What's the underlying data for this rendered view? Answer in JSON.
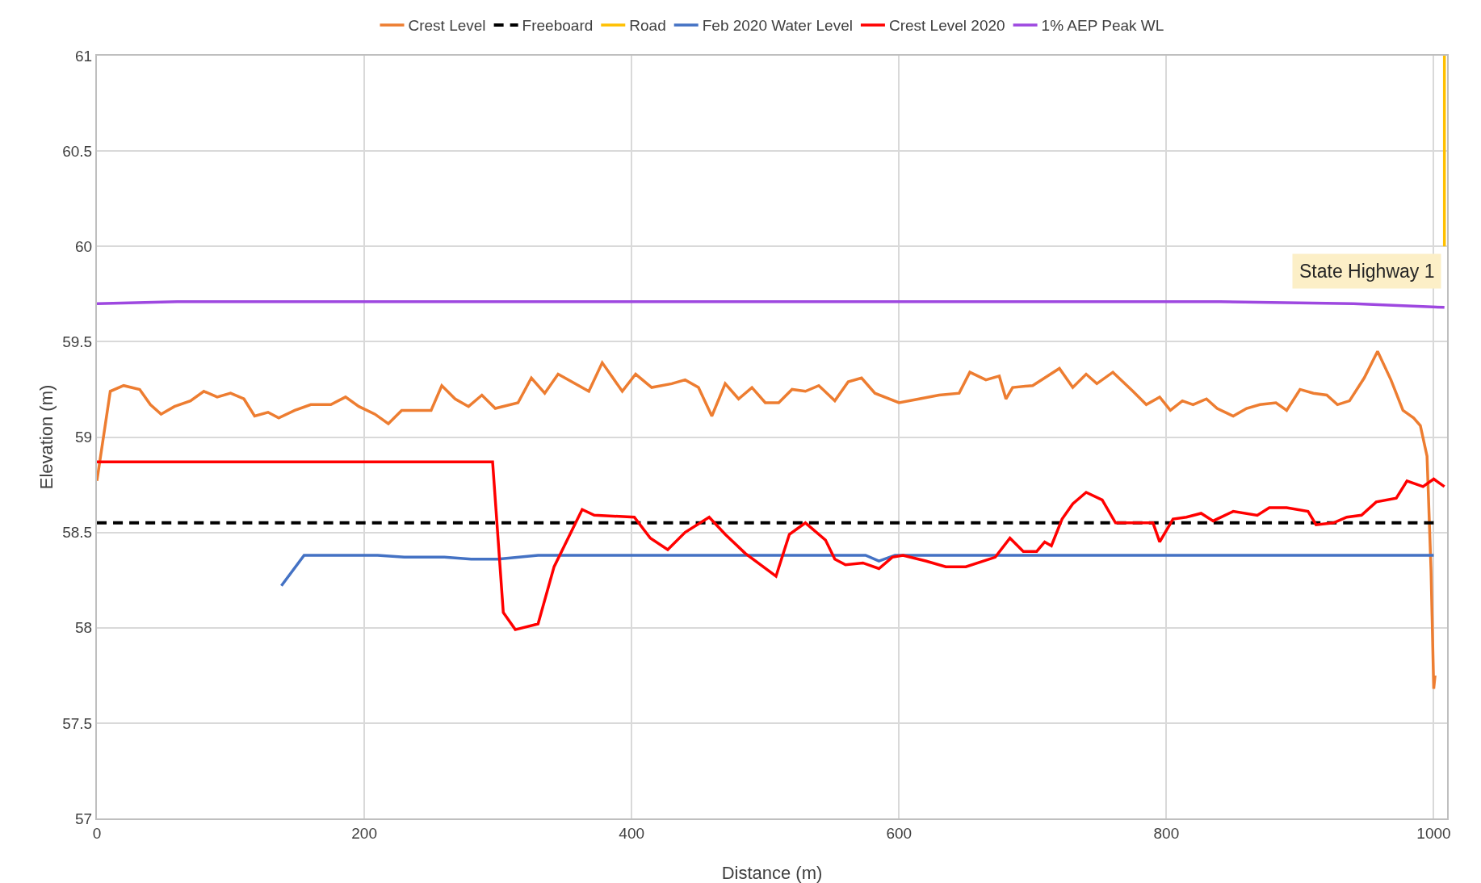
{
  "chart_data": {
    "type": "line",
    "xlabel": "Distance (m)",
    "ylabel": "Elevation (m)",
    "xlim": [
      0,
      1010
    ],
    "xticks": [
      0,
      200,
      400,
      600,
      800,
      1000
    ],
    "ylim": [
      57,
      61
    ],
    "yticks": [
      57,
      57.5,
      58,
      58.5,
      59,
      59.5,
      60,
      60.5,
      61
    ],
    "grid": true,
    "legend": "top",
    "marker": "none",
    "annotations": [
      "State Highway 1"
    ],
    "series": [
      {
        "name": "Crest Level",
        "color": "#ed7d31",
        "x": [
          0,
          10,
          20,
          32,
          40,
          48,
          58,
          70,
          80,
          90,
          100,
          110,
          118,
          128,
          136,
          148,
          160,
          175,
          186,
          196,
          208,
          218,
          228,
          250,
          258,
          268,
          278,
          288,
          298,
          315,
          325,
          335,
          345,
          368,
          378,
          393,
          403,
          415,
          430,
          440,
          450,
          460,
          470,
          480,
          490,
          500,
          510,
          520,
          530,
          540,
          552,
          562,
          572,
          582,
          600,
          615,
          630,
          645,
          653,
          665,
          675,
          680,
          685,
          700,
          720,
          730,
          740,
          748,
          760,
          775,
          785,
          795,
          803,
          812,
          820,
          830,
          838,
          850,
          860,
          870,
          882,
          890,
          900,
          910,
          920,
          928,
          937,
          948,
          958,
          968,
          977,
          985,
          990,
          995,
          998,
          1000,
          1001
        ],
        "values": [
          58.77,
          59.24,
          59.27,
          59.25,
          59.17,
          59.12,
          59.16,
          59.19,
          59.24,
          59.21,
          59.23,
          59.2,
          59.11,
          59.13,
          59.1,
          59.14,
          59.17,
          59.17,
          59.21,
          59.16,
          59.12,
          59.07,
          59.14,
          59.14,
          59.27,
          59.2,
          59.16,
          59.22,
          59.15,
          59.18,
          59.31,
          59.23,
          59.33,
          59.24,
          59.39,
          59.24,
          59.33,
          59.26,
          59.28,
          59.3,
          59.26,
          59.11,
          59.28,
          59.2,
          59.26,
          59.18,
          59.18,
          59.25,
          59.24,
          59.27,
          59.19,
          59.29,
          59.31,
          59.23,
          59.18,
          59.2,
          59.22,
          59.23,
          59.34,
          59.3,
          59.32,
          59.2,
          59.26,
          59.27,
          59.36,
          59.26,
          59.33,
          59.28,
          59.34,
          59.24,
          59.17,
          59.21,
          59.14,
          59.19,
          59.17,
          59.2,
          59.15,
          59.11,
          59.15,
          59.17,
          59.18,
          59.14,
          59.25,
          59.23,
          59.22,
          59.17,
          59.19,
          59.31,
          59.45,
          59.3,
          59.14,
          59.1,
          59.06,
          58.9,
          58.3,
          57.68,
          57.75
        ]
      },
      {
        "name": "Freeboard",
        "color": "#000000",
        "line_style": "dashed",
        "x": [
          0,
          1000
        ],
        "values": [
          58.55,
          58.55
        ]
      },
      {
        "name": "Road",
        "color": "#ffc000",
        "x": [
          1008,
          1008
        ],
        "values": [
          60,
          61
        ]
      },
      {
        "name": "Feb 2020 Water Level",
        "color": "#4472c4",
        "x": [
          138,
          155,
          210,
          230,
          260,
          280,
          300,
          330,
          350,
          575,
          585,
          597,
          1000
        ],
        "values": [
          58.22,
          58.38,
          58.38,
          58.37,
          58.37,
          58.36,
          58.36,
          58.38,
          58.38,
          58.38,
          58.35,
          58.38,
          58.38
        ]
      },
      {
        "name": "Crest Level 2020",
        "color": "#ff0000",
        "x": [
          0,
          296,
          304,
          313,
          330,
          342,
          363,
          372,
          402,
          414,
          427,
          440,
          458,
          470,
          485,
          508,
          518,
          530,
          545,
          552,
          560,
          573,
          585,
          595,
          603,
          620,
          635,
          650,
          672,
          683,
          693,
          703,
          709,
          714,
          722,
          730,
          740,
          752,
          762,
          775,
          790,
          795,
          805,
          815,
          826,
          835,
          850,
          868,
          877,
          890,
          906,
          912,
          925,
          935,
          946,
          957,
          972,
          980,
          992,
          1000,
          1008
        ],
        "values": [
          58.87,
          58.87,
          58.08,
          57.99,
          58.02,
          58.32,
          58.62,
          58.59,
          58.58,
          58.47,
          58.41,
          58.5,
          58.58,
          58.49,
          58.39,
          58.27,
          58.49,
          58.55,
          58.46,
          58.36,
          58.33,
          58.34,
          58.31,
          58.37,
          58.38,
          58.35,
          58.32,
          58.32,
          58.37,
          58.47,
          58.4,
          58.4,
          58.45,
          58.43,
          58.57,
          58.65,
          58.71,
          58.67,
          58.55,
          58.55,
          58.55,
          58.45,
          58.57,
          58.58,
          58.6,
          58.56,
          58.61,
          58.59,
          58.63,
          58.63,
          58.61,
          58.54,
          58.55,
          58.58,
          58.59,
          58.66,
          58.68,
          58.77,
          58.74,
          58.78,
          58.74
        ]
      },
      {
        "name": "1% AEP Peak WL",
        "color": "#9e48e0",
        "x": [
          0,
          60,
          840,
          940,
          1008
        ],
        "values": [
          59.7,
          59.71,
          59.71,
          59.7,
          59.68
        ]
      }
    ]
  }
}
